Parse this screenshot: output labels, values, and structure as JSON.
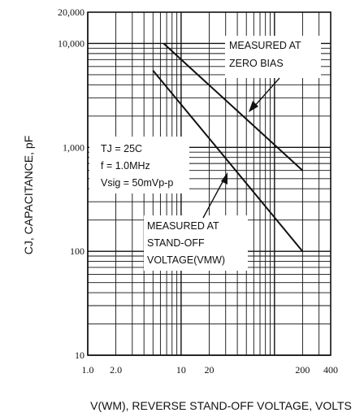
{
  "chart_data": {
    "type": "line",
    "x_scale": "log",
    "y_scale": "log",
    "xlim": [
      1,
      400
    ],
    "ylim": [
      10,
      20000
    ],
    "grid": true,
    "xlabel": "V(WM), REVERSE STAND-OFF VOLTAGE, VOLTS",
    "ylabel": "CJ, CAPACITANCE, pF",
    "x_ticks": [
      {
        "value": 1,
        "label": "1.0"
      },
      {
        "value": 2,
        "label": "2.0"
      },
      {
        "value": 10,
        "label": "10"
      },
      {
        "value": 20,
        "label": "20"
      },
      {
        "value": 200,
        "label": "200"
      },
      {
        "value": 400,
        "label": "400"
      }
    ],
    "y_ticks": [
      {
        "value": 10,
        "label": "10"
      },
      {
        "value": 100,
        "label": "100"
      },
      {
        "value": 1000,
        "label": "1,000"
      },
      {
        "value": 10000,
        "label": "10,000"
      },
      {
        "value": 20000,
        "label": "20,000"
      }
    ],
    "series": [
      {
        "x": [
          6.5,
          200
        ],
        "y": [
          10000,
          600
        ]
      },
      {
        "x": [
          5,
          200
        ],
        "y": [
          5500,
          100
        ]
      }
    ],
    "annotations": {
      "zero_bias": [
        "MEASURED AT",
        "ZERO BIAS"
      ],
      "conditions": [
        "TJ = 25C",
        "f = 1.0MHz",
        "Vsig = 50mVp-p"
      ],
      "standoff": [
        "MEASURED AT",
        "STAND-OFF",
        "VOLTAGE(VMW)"
      ]
    }
  }
}
